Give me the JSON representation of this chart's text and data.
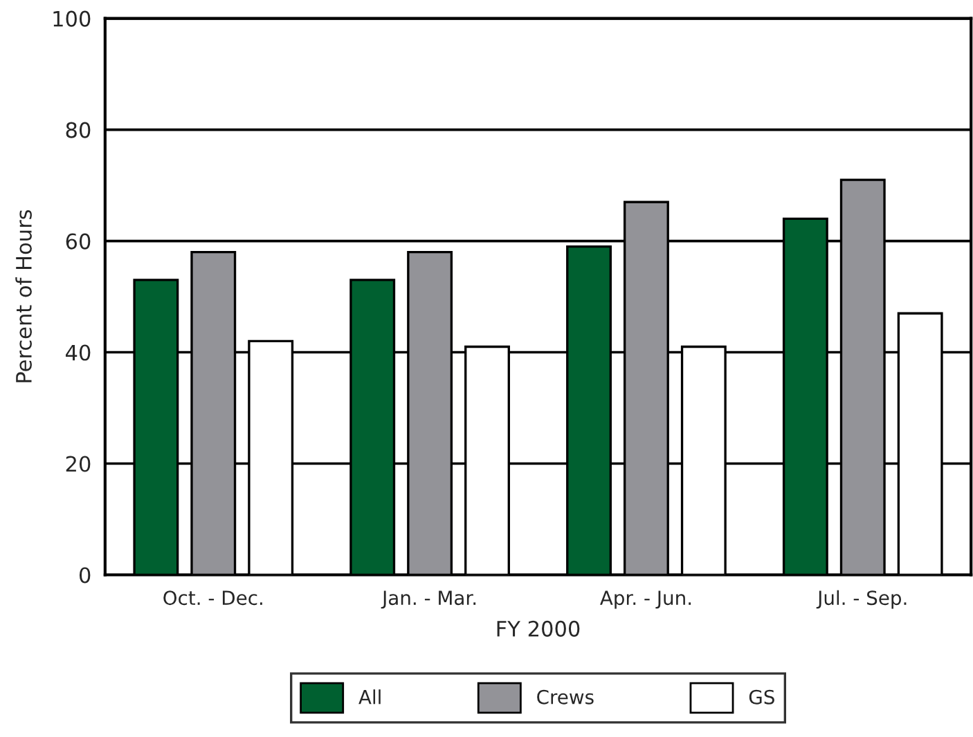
{
  "chart_data": {
    "type": "bar",
    "xlabel": "FY 2000",
    "ylabel": "Percent of Hours",
    "categories": [
      "Oct. - Dec.",
      "Jan. - Mar.",
      "Apr. - Jun.",
      "Jul. - Sep."
    ],
    "series": [
      {
        "name": "All",
        "color": "#006030",
        "values": [
          53,
          53,
          59,
          64
        ]
      },
      {
        "name": "Crews",
        "color": "#939398",
        "values": [
          58,
          58,
          67,
          71
        ]
      },
      {
        "name": "GS",
        "color": "#ffffff",
        "values": [
          42,
          41,
          41,
          47
        ]
      }
    ],
    "ylim": [
      0,
      100
    ],
    "yticks": [
      0,
      20,
      40,
      60,
      80,
      100
    ],
    "grid": "y",
    "legend": "bottom"
  }
}
